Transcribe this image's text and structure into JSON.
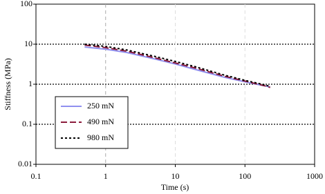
{
  "chart_data": {
    "type": "line",
    "x_label": "Time (s)",
    "y_label": "Stiffness (MPa)",
    "x": [
      0.5,
      1,
      2,
      5,
      10,
      20,
      50,
      100,
      200,
      230
    ],
    "series": [
      {
        "name": "250 mN",
        "color": "#8f8fef",
        "style": "solid",
        "values": [
          8.5,
          7.5,
          6.2,
          4.3,
          3.2,
          2.3,
          1.5,
          1.15,
          0.9,
          0.85
        ]
      },
      {
        "name": "490 mN",
        "color": "#8b1a3a",
        "style": "dashed",
        "values": [
          9.5,
          8.2,
          6.7,
          4.6,
          3.4,
          2.5,
          1.6,
          1.2,
          0.9,
          0.83
        ]
      },
      {
        "name": "980 mN",
        "color": "#000000",
        "style": "dotted",
        "values": [
          10,
          8.8,
          7.2,
          5.0,
          3.7,
          2.7,
          1.7,
          1.25,
          0.95,
          0.88
        ]
      }
    ],
    "xlim": [
      0.1,
      1000
    ],
    "ylim": [
      0.01,
      100
    ],
    "xticks": [
      0.1,
      1,
      10,
      100,
      1000
    ],
    "yticks": [
      0.01,
      0.1,
      1,
      10,
      100
    ],
    "xscale": "log",
    "yscale": "log",
    "grid": true,
    "legend": "lower left"
  }
}
